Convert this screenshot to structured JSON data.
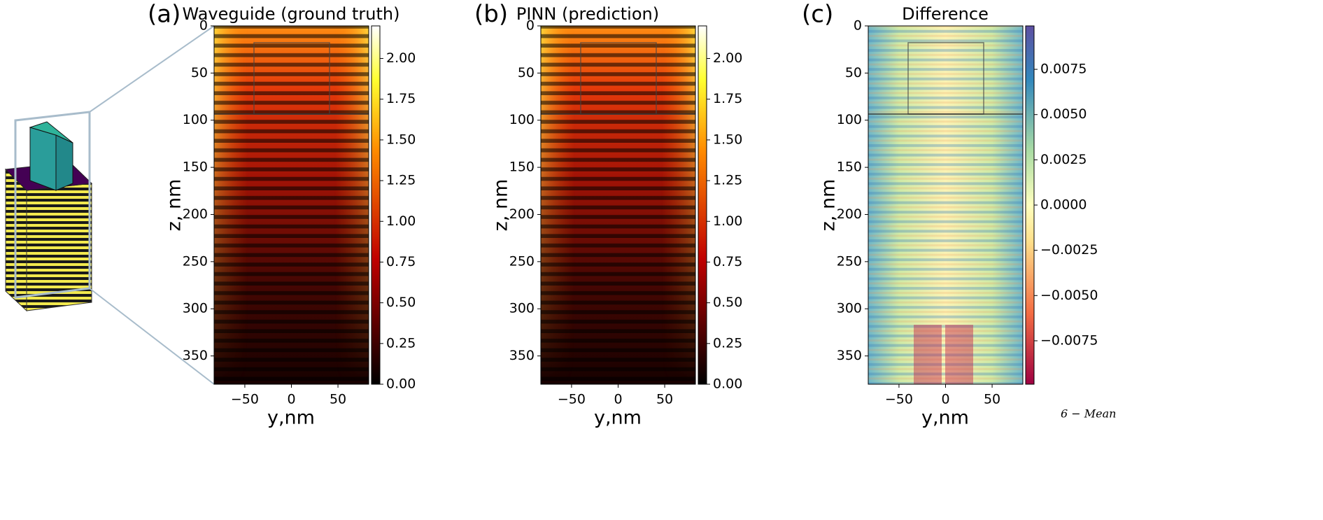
{
  "chart_data": [
    {
      "type": "heatmap",
      "panel": "(a)",
      "title": "Waveguide (ground truth)",
      "xlabel": "y,nm",
      "ylabel": "z, nm",
      "xlim": [
        -83,
        83
      ],
      "ylim": [
        380,
        0
      ],
      "xticks": [
        {
          "value": -50,
          "label": "−50"
        },
        0,
        50
      ],
      "yticks": [
        0,
        50,
        100,
        150,
        200,
        250,
        300,
        350
      ],
      "colormap": "hot",
      "clim": [
        0,
        2.2
      ],
      "cticks": [
        {
          "value": 0,
          "label": "0.00"
        },
        {
          "value": 0.25,
          "label": "0.25"
        },
        {
          "value": 0.5,
          "label": "0.50"
        },
        {
          "value": 0.75,
          "label": "0.75"
        },
        {
          "value": 1,
          "label": "1.00"
        },
        {
          "value": 1.25,
          "label": "1.25"
        },
        {
          "value": 1.5,
          "label": "1.50"
        },
        {
          "value": 1.75,
          "label": "1.75"
        },
        {
          "value": 2,
          "label": "2.00"
        }
      ]
    },
    {
      "type": "heatmap",
      "panel": "(b)",
      "title": "PINN (prediction)",
      "xlabel": "y,nm",
      "ylabel": "z, nm",
      "xlim": [
        -83,
        83
      ],
      "ylim": [
        380,
        0
      ],
      "xticks": [
        {
          "value": -50,
          "label": "−50"
        },
        0,
        50
      ],
      "yticks": [
        0,
        50,
        100,
        150,
        200,
        250,
        300,
        350
      ],
      "colormap": "hot",
      "clim": [
        0,
        2.2
      ],
      "cticks": [
        {
          "value": 0,
          "label": "0.00"
        },
        {
          "value": 0.25,
          "label": "0.25"
        },
        {
          "value": 0.5,
          "label": "0.50"
        },
        {
          "value": 0.75,
          "label": "0.75"
        },
        {
          "value": 1,
          "label": "1.00"
        },
        {
          "value": 1.25,
          "label": "1.25"
        },
        {
          "value": 1.5,
          "label": "1.50"
        },
        {
          "value": 1.75,
          "label": "1.75"
        },
        {
          "value": 2,
          "label": "2.00"
        }
      ]
    },
    {
      "type": "heatmap",
      "panel": "(c)",
      "title": "Difference",
      "xlabel": "y,nm",
      "ylabel": "z, nm",
      "xlim": [
        -83,
        83
      ],
      "ylim": [
        380,
        0
      ],
      "xticks": [
        {
          "value": -50,
          "label": "−50"
        },
        0,
        50
      ],
      "yticks": [
        0,
        50,
        100,
        150,
        200,
        250,
        300,
        350
      ],
      "colormap": "Spectral_r",
      "clim": [
        -0.0099,
        0.0099
      ],
      "cticks": [
        {
          "value": -0.0075,
          "label": "−0.0075"
        },
        {
          "value": -0.005,
          "label": "−0.0050"
        },
        {
          "value": -0.0025,
          "label": "−0.0025"
        },
        {
          "value": 0,
          "label": "0.0000"
        },
        {
          "value": 0.0025,
          "label": "0.0025"
        },
        {
          "value": 0.005,
          "label": "0.0050"
        },
        {
          "value": 0.0075,
          "label": "0.0075"
        }
      ],
      "annotation": "6 − Mean"
    }
  ]
}
